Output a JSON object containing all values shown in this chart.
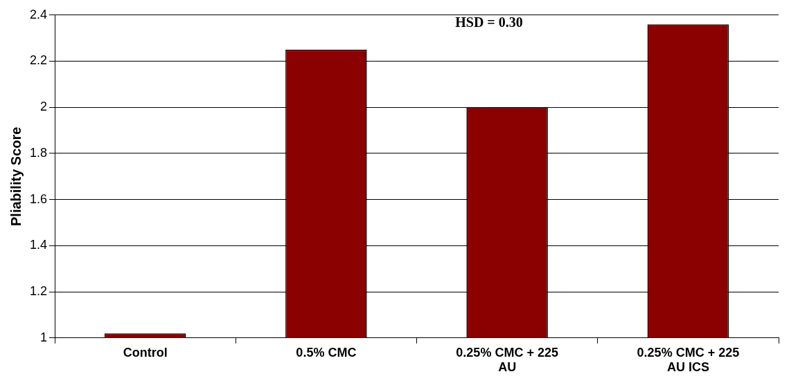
{
  "chart_data": {
    "type": "bar",
    "ylabel": "Pliability Score",
    "categories": [
      "Control",
      "0.5% CMC",
      "0.25% CMC + 225 AU",
      "0.25% CMC + 225 AU ICS"
    ],
    "values": [
      1.02,
      2.25,
      2.0,
      2.36
    ],
    "color": "#8b0000",
    "ylim": [
      1,
      2.4
    ],
    "yticks": [
      1,
      1.2,
      1.4,
      1.6,
      1.8,
      2,
      2.2,
      2.4
    ],
    "grid": "y",
    "annotations": [
      "HSD = 0.30"
    ]
  }
}
